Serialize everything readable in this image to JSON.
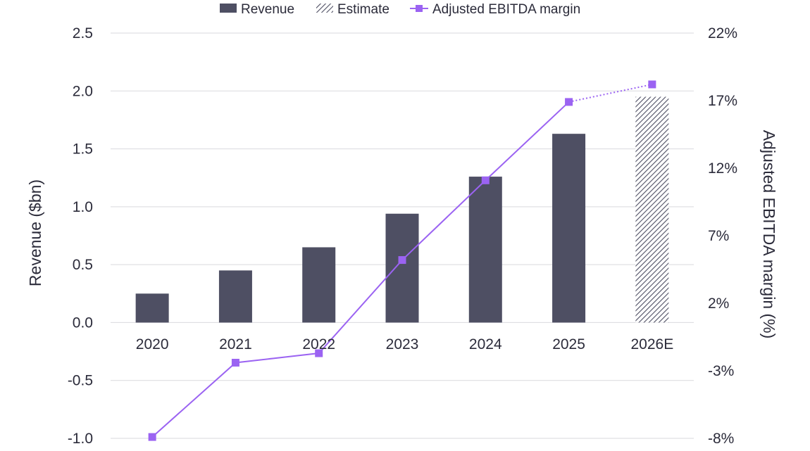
{
  "chart_data": {
    "type": "bar",
    "categories": [
      "2020",
      "2021",
      "2022",
      "2023",
      "2024",
      "2025",
      "2026E"
    ],
    "series": [
      {
        "name": "Revenue",
        "axis": "left",
        "kind": "bar",
        "values": [
          0.25,
          0.45,
          0.65,
          0.94,
          1.26,
          1.63,
          null
        ]
      },
      {
        "name": "Estimate",
        "axis": "left",
        "kind": "bar-hatched",
        "values": [
          null,
          null,
          null,
          null,
          null,
          null,
          1.95
        ]
      },
      {
        "name": "Adjusted EBITDA margin",
        "axis": "right",
        "kind": "line",
        "values": [
          -7.9,
          -2.4,
          -1.7,
          5.2,
          11.1,
          16.9,
          18.2
        ],
        "estimate_from_index": 5
      }
    ],
    "legend": [
      "Revenue",
      "Estimate",
      "Adjusted EBITDA margin"
    ],
    "legend_position": "top-center",
    "ylabel": "Revenue ($bn)",
    "y2label": "Adjusted EBITDA margin (%)",
    "ylim": [
      -1.0,
      2.5
    ],
    "yticks": [
      2.5,
      2.0,
      1.5,
      1.0,
      0.5,
      0.0,
      -0.5,
      -1.0
    ],
    "ytick_labels": [
      "2.5",
      "2.0",
      "1.5",
      "1.0",
      "0.5",
      "0.0",
      "-0.5",
      "-1.0"
    ],
    "y2lim": [
      -8,
      22
    ],
    "y2ticks": [
      22,
      17,
      12,
      7,
      2,
      -3,
      -8
    ],
    "y2tick_labels": [
      "22%",
      "17%",
      "12%",
      "7%",
      "2%",
      "-3%",
      "-8%"
    ],
    "grid": true,
    "colors": {
      "bar": "#4e4f63",
      "line": "#9b63f2",
      "hatch": "#4e4f63",
      "text": "#2b2b3a",
      "grid": "#d9d9de"
    }
  }
}
